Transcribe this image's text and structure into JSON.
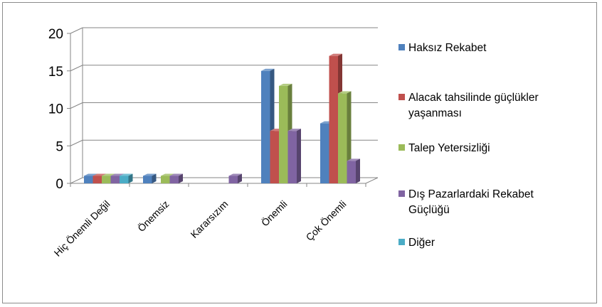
{
  "chart_data": {
    "type": "bar",
    "title": "",
    "xlabel": "",
    "ylabel": "",
    "ylim": [
      0,
      20
    ],
    "yticks": [
      0,
      5,
      10,
      15,
      20
    ],
    "grid": true,
    "legend_position": "right",
    "style": "3d-clustered-column",
    "categories": [
      "Hiç Önemli Değil",
      "Önemsiz",
      "Kararsızım",
      "Önemli",
      "Çok Önemli"
    ],
    "series": [
      {
        "name": "Haksız Rekabet",
        "color": "#4F81BD",
        "values": [
          1,
          1,
          0,
          15,
          8
        ]
      },
      {
        "name": "Alacak tahsilinde güçlükler yaşanması",
        "color": "#C0504D",
        "values": [
          1,
          0,
          0,
          7,
          17
        ]
      },
      {
        "name": "Talep Yetersizliği",
        "color": "#9BBB59",
        "values": [
          1,
          1,
          0,
          13,
          12
        ]
      },
      {
        "name": "Dış Pazarlardaki Rekabet Güçlüğü",
        "color": "#8064A2",
        "values": [
          1,
          1,
          1,
          7,
          3
        ]
      },
      {
        "name": "Diğer",
        "color": "#4BACC6",
        "values": [
          1,
          0,
          0,
          0,
          0
        ]
      }
    ]
  }
}
